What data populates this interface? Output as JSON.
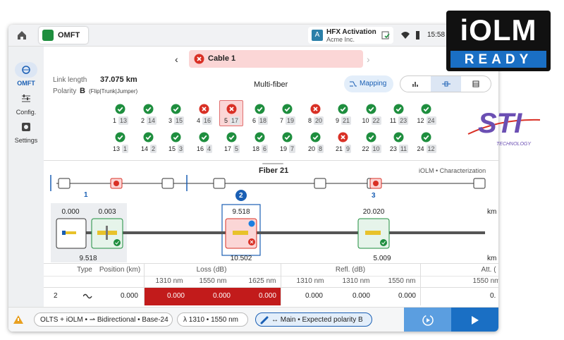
{
  "topbar": {
    "app": "OMFT",
    "account": {
      "badge": "A",
      "title": "HFX Activation",
      "subtitle": "Acme Inc."
    },
    "time": "15:58"
  },
  "badge": {
    "title": "iOLM",
    "subtitle": "READY"
  },
  "logo": {
    "title": "STI",
    "subtitle": "TECHNOLOGY"
  },
  "sidebar": [
    "OMFT",
    "Config.",
    "Settings"
  ],
  "cable": "Cable 1",
  "info": {
    "length_label": "Link length",
    "length": "37.075 km",
    "polarity_label": "Polarity",
    "polarity": "B",
    "polarity_note": "(Flip|Trunk|Jumper)",
    "mode": "Multi-fiber",
    "mapping": "Mapping"
  },
  "fibers": [
    {
      "id": "1",
      "pair": "13",
      "status": "pass"
    },
    {
      "id": "2",
      "pair": "14",
      "status": "pass"
    },
    {
      "id": "3",
      "pair": "15",
      "status": "pass"
    },
    {
      "id": "4",
      "pair": "16",
      "status": "fail"
    },
    {
      "id": "5",
      "pair": "17",
      "status": "fail",
      "selected": true
    },
    {
      "id": "6",
      "pair": "18",
      "status": "pass"
    },
    {
      "id": "7",
      "pair": "19",
      "status": "pass"
    },
    {
      "id": "8",
      "pair": "20",
      "status": "fail"
    },
    {
      "id": "9",
      "pair": "21",
      "status": "pass"
    },
    {
      "id": "10",
      "pair": "22",
      "status": "pass"
    },
    {
      "id": "11",
      "pair": "23",
      "status": "pass"
    },
    {
      "id": "12",
      "pair": "24",
      "status": "pass"
    },
    {
      "id": "13",
      "pair": "1",
      "status": "pass"
    },
    {
      "id": "14",
      "pair": "2",
      "status": "pass"
    },
    {
      "id": "15",
      "pair": "3",
      "status": "pass"
    },
    {
      "id": "16",
      "pair": "4",
      "status": "pass"
    },
    {
      "id": "17",
      "pair": "5",
      "status": "pass"
    },
    {
      "id": "18",
      "pair": "6",
      "status": "pass"
    },
    {
      "id": "19",
      "pair": "7",
      "status": "pass"
    },
    {
      "id": "20",
      "pair": "8",
      "status": "pass"
    },
    {
      "id": "21",
      "pair": "9",
      "status": "fail"
    },
    {
      "id": "22",
      "pair": "10",
      "status": "pass"
    },
    {
      "id": "23",
      "pair": "11",
      "status": "pass"
    },
    {
      "id": "24",
      "pair": "12",
      "status": "pass"
    }
  ],
  "fiber_panel": {
    "title": "Fiber 21",
    "subtitle": "iOLM • Characterization"
  },
  "overview_labels": [
    "1",
    "2",
    "3"
  ],
  "events": {
    "top": [
      "0.000",
      "0.003",
      "9.518",
      "20.020"
    ],
    "bottom": [
      "9.518",
      "10.502",
      "5.009"
    ],
    "unit": "km"
  },
  "table": {
    "headers": [
      "Type",
      "Position (km)",
      "Loss (dB)",
      "Refl. (dB)",
      "Att. ("
    ],
    "subheaders": [
      "1310 nm",
      "1550 nm",
      "1625 nm",
      "1310 nm",
      "1310 nm",
      "1550 nm",
      "1550 nm"
    ],
    "rows": [
      [
        "2",
        "0.000",
        "0.000",
        "0.000",
        "0.000",
        "0.000",
        "0.000",
        "0.000",
        "0."
      ]
    ]
  },
  "footer": {
    "chips": [
      "OLTS + iOLM •",
      "Bidirectional • Base-24",
      "λ 1310 • 1550 nm",
      "↔ Main • Expected polarity B"
    ]
  }
}
